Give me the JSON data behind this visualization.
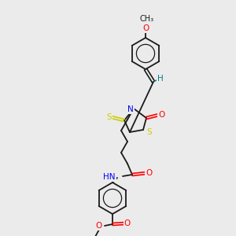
{
  "background_color": "#ebebeb",
  "bond_color": "#1a1a1a",
  "atom_colors": {
    "N": "#0000ff",
    "O": "#ff0000",
    "S": "#cccc00",
    "H": "#008080",
    "C": "#1a1a1a"
  },
  "figsize": [
    3.0,
    3.0
  ],
  "dpi": 100
}
